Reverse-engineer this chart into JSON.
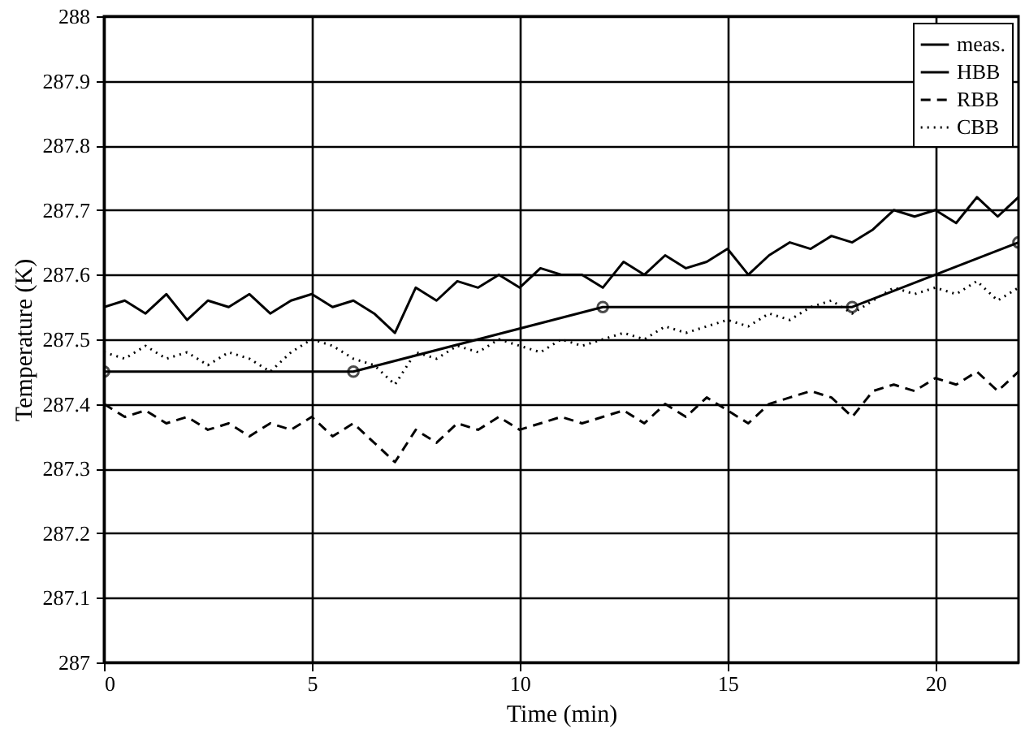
{
  "chart_data": {
    "type": "line",
    "xlabel": "Time (min)",
    "ylabel": "Temperature (K)",
    "xlim": [
      0,
      22
    ],
    "xticks": [
      0,
      5,
      10,
      15,
      20
    ],
    "ylim": [
      287,
      288
    ],
    "yticks": [
      287,
      287.1,
      287.2,
      287.3,
      287.4,
      287.5,
      287.6,
      287.7,
      287.8,
      287.9,
      288
    ],
    "grid": true,
    "legend": "top right",
    "x": [
      0,
      0.5,
      1,
      1.5,
      2,
      2.5,
      3,
      3.5,
      4,
      4.5,
      5,
      5.5,
      6,
      6.5,
      7,
      7.5,
      8,
      8.5,
      9,
      9.5,
      10,
      10.5,
      11,
      11.5,
      12,
      12.5,
      13,
      13.5,
      14,
      14.5,
      15,
      15.5,
      16,
      16.5,
      17,
      17.5,
      18,
      18.5,
      19,
      19.5,
      20,
      20.5,
      21,
      21.5,
      22
    ],
    "series": [
      {
        "name": "meas.",
        "color": "#000000",
        "line_style": "solid",
        "marker": "circle",
        "x": [
          0,
          6,
          12,
          18,
          22
        ],
        "values": [
          287.45,
          287.45,
          287.55,
          287.55,
          287.65
        ]
      },
      {
        "name": "HBB",
        "color": "#000000",
        "line_style": "solid",
        "values": [
          287.55,
          287.56,
          287.54,
          287.57,
          287.53,
          287.56,
          287.55,
          287.57,
          287.54,
          287.56,
          287.57,
          287.55,
          287.56,
          287.54,
          287.51,
          287.58,
          287.56,
          287.59,
          287.58,
          287.6,
          287.58,
          287.61,
          287.6,
          287.6,
          287.58,
          287.62,
          287.6,
          287.63,
          287.61,
          287.62,
          287.64,
          287.6,
          287.63,
          287.65,
          287.64,
          287.66,
          287.65,
          287.67,
          287.7,
          287.69,
          287.7,
          287.68,
          287.72,
          287.69,
          287.72
        ]
      },
      {
        "name": "RBB",
        "color": "#000000",
        "line_style": "dashed",
        "values": [
          287.4,
          287.38,
          287.39,
          287.37,
          287.38,
          287.36,
          287.37,
          287.35,
          287.37,
          287.36,
          287.38,
          287.35,
          287.37,
          287.34,
          287.31,
          287.36,
          287.34,
          287.37,
          287.36,
          287.38,
          287.36,
          287.37,
          287.38,
          287.37,
          287.38,
          287.39,
          287.37,
          287.4,
          287.38,
          287.41,
          287.39,
          287.37,
          287.4,
          287.41,
          287.42,
          287.41,
          287.38,
          287.42,
          287.43,
          287.42,
          287.44,
          287.43,
          287.45,
          287.42,
          287.45
        ]
      },
      {
        "name": "CBB",
        "color": "#000000",
        "line_style": "dotted",
        "values": [
          287.48,
          287.47,
          287.49,
          287.47,
          287.48,
          287.46,
          287.48,
          287.47,
          287.45,
          287.48,
          287.5,
          287.49,
          287.47,
          287.46,
          287.43,
          287.48,
          287.47,
          287.49,
          287.48,
          287.5,
          287.49,
          287.48,
          287.5,
          287.49,
          287.5,
          287.51,
          287.5,
          287.52,
          287.51,
          287.52,
          287.53,
          287.52,
          287.54,
          287.53,
          287.55,
          287.56,
          287.54,
          287.56,
          287.58,
          287.57,
          287.58,
          287.57,
          287.59,
          287.56,
          287.58
        ]
      }
    ]
  }
}
